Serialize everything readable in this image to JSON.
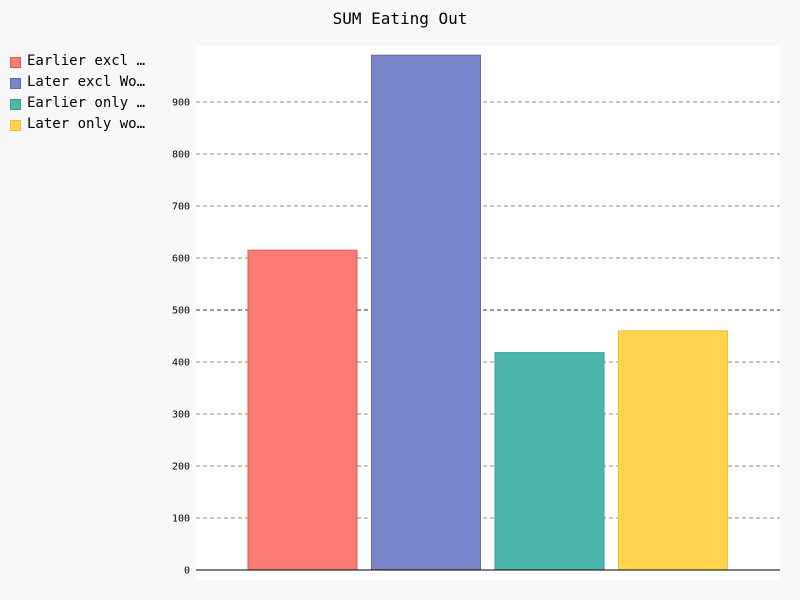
{
  "chart_data": {
    "type": "bar",
    "title": "SUM Eating Out",
    "xlabel": "",
    "ylabel": "",
    "ylim": [
      0,
      1000
    ],
    "yticks": [
      0,
      100,
      200,
      300,
      400,
      500,
      600,
      700,
      800,
      900
    ],
    "grid": true,
    "legend_position": "left",
    "series": [
      {
        "name": "Earlier excl w…",
        "value": 615,
        "color": "#f77b72",
        "stroke": "#e55a50"
      },
      {
        "name": "Later excl Work",
        "value": 990,
        "color": "#7986cb",
        "stroke": "#5c6bb0"
      },
      {
        "name": "Earlier only w…",
        "value": 418,
        "color": "#4db6ac",
        "stroke": "#3a9990"
      },
      {
        "name": "Later only work",
        "value": 460,
        "color": "#ffd54f",
        "stroke": "#f0c030"
      }
    ]
  }
}
